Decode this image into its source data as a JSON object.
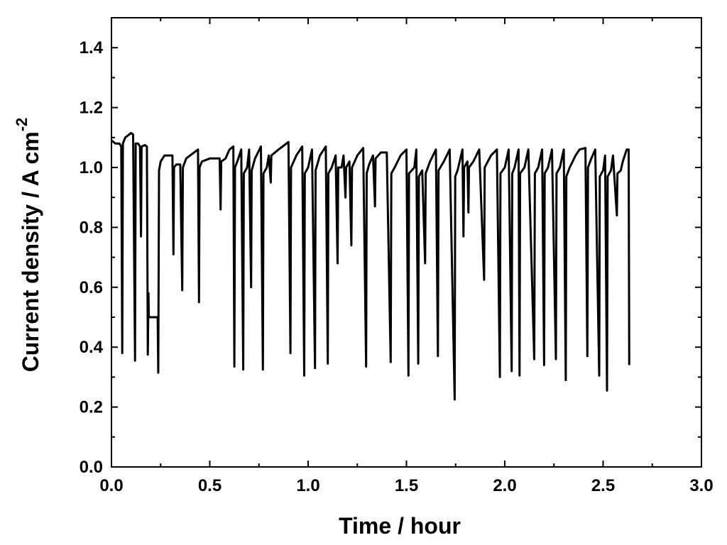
{
  "chart_data": {
    "type": "line",
    "title": "",
    "xlabel": "Time / hour",
    "ylabel_main": "Current density / A cm",
    "ylabel_superscript": "-2",
    "xlim": [
      0.0,
      3.0
    ],
    "ylim": [
      0.0,
      1.5
    ],
    "x_ticks": [
      "0.0",
      "0.5",
      "1.0",
      "1.5",
      "2.0",
      "2.5",
      "3.0"
    ],
    "y_ticks": [
      "0.0",
      "0.2",
      "0.4",
      "0.6",
      "0.8",
      "1.0",
      "1.2",
      "1.4"
    ],
    "grid": false,
    "legend": "none",
    "line_color": "#000000",
    "series": [
      {
        "points": [
          [
            0.0,
            1.09
          ],
          [
            0.02,
            1.08
          ],
          [
            0.04,
            1.08
          ],
          [
            0.05,
            1.07
          ],
          [
            0.055,
            0.38
          ],
          [
            0.058,
            1.08
          ],
          [
            0.07,
            1.1
          ],
          [
            0.09,
            1.11
          ],
          [
            0.1,
            1.115
          ],
          [
            0.11,
            1.11
          ],
          [
            0.12,
            0.355
          ],
          [
            0.123,
            1.08
          ],
          [
            0.135,
            1.08
          ],
          [
            0.145,
            1.07
          ],
          [
            0.15,
            0.77
          ],
          [
            0.153,
            1.07
          ],
          [
            0.17,
            1.075
          ],
          [
            0.18,
            1.07
          ],
          [
            0.185,
            0.375
          ],
          [
            0.188,
            0.58
          ],
          [
            0.19,
            0.5
          ],
          [
            0.235,
            0.5
          ],
          [
            0.238,
            0.315
          ],
          [
            0.242,
            0.99
          ],
          [
            0.25,
            1.02
          ],
          [
            0.26,
            1.03
          ],
          [
            0.27,
            1.04
          ],
          [
            0.3,
            1.04
          ],
          [
            0.31,
            1.04
          ],
          [
            0.315,
            0.71
          ],
          [
            0.318,
            1.0
          ],
          [
            0.33,
            1.01
          ],
          [
            0.35,
            1.01
          ],
          [
            0.36,
            0.59
          ],
          [
            0.363,
            1.0
          ],
          [
            0.38,
            1.03
          ],
          [
            0.4,
            1.04
          ],
          [
            0.42,
            1.05
          ],
          [
            0.44,
            1.06
          ],
          [
            0.445,
            0.55
          ],
          [
            0.448,
            1.0
          ],
          [
            0.46,
            1.02
          ],
          [
            0.5,
            1.03
          ],
          [
            0.54,
            1.03
          ],
          [
            0.55,
            1.03
          ],
          [
            0.555,
            0.86
          ],
          [
            0.558,
            1.02
          ],
          [
            0.58,
            1.03
          ],
          [
            0.6,
            1.06
          ],
          [
            0.62,
            1.07
          ],
          [
            0.625,
            0.335
          ],
          [
            0.628,
            1.0
          ],
          [
            0.64,
            1.02
          ],
          [
            0.66,
            1.06
          ],
          [
            0.67,
            0.325
          ],
          [
            0.673,
            0.98
          ],
          [
            0.69,
            1.0
          ],
          [
            0.7,
            1.06
          ],
          [
            0.71,
            0.6
          ],
          [
            0.713,
            0.99
          ],
          [
            0.73,
            1.03
          ],
          [
            0.76,
            1.07
          ],
          [
            0.77,
            0.325
          ],
          [
            0.773,
            0.98
          ],
          [
            0.79,
            1.0
          ],
          [
            0.8,
            1.04
          ],
          [
            0.81,
            0.95
          ],
          [
            0.813,
            1.04
          ],
          [
            0.85,
            1.06
          ],
          [
            0.87,
            1.07
          ],
          [
            0.9,
            1.085
          ],
          [
            0.91,
            0.38
          ],
          [
            0.913,
            1.0
          ],
          [
            0.94,
            1.04
          ],
          [
            0.97,
            1.07
          ],
          [
            0.98,
            0.305
          ],
          [
            0.983,
            0.98
          ],
          [
            1.0,
            1.0
          ],
          [
            1.02,
            1.06
          ],
          [
            1.035,
            0.33
          ],
          [
            1.038,
            0.99
          ],
          [
            1.06,
            1.04
          ],
          [
            1.09,
            1.07
          ],
          [
            1.1,
            0.345
          ],
          [
            1.103,
            0.98
          ],
          [
            1.12,
            1.0
          ],
          [
            1.14,
            1.04
          ],
          [
            1.15,
            0.68
          ],
          [
            1.153,
            1.0
          ],
          [
            1.17,
            1.0
          ],
          [
            1.18,
            1.04
          ],
          [
            1.19,
            0.9
          ],
          [
            1.193,
            1.0
          ],
          [
            1.21,
            1.02
          ],
          [
            1.22,
            0.74
          ],
          [
            1.223,
            1.0
          ],
          [
            1.25,
            1.04
          ],
          [
            1.28,
            1.065
          ],
          [
            1.295,
            0.335
          ],
          [
            1.298,
            0.98
          ],
          [
            1.31,
            1.01
          ],
          [
            1.33,
            1.04
          ],
          [
            1.34,
            0.87
          ],
          [
            1.343,
            1.03
          ],
          [
            1.37,
            1.05
          ],
          [
            1.4,
            1.05
          ],
          [
            1.42,
            0.35
          ],
          [
            1.423,
            0.98
          ],
          [
            1.44,
            1.0
          ],
          [
            1.47,
            1.04
          ],
          [
            1.5,
            1.06
          ],
          [
            1.51,
            0.305
          ],
          [
            1.513,
            0.98
          ],
          [
            1.54,
            1.0
          ],
          [
            1.55,
            1.06
          ],
          [
            1.56,
            0.345
          ],
          [
            1.563,
            0.97
          ],
          [
            1.58,
            0.99
          ],
          [
            1.595,
            0.68
          ],
          [
            1.598,
            0.98
          ],
          [
            1.62,
            1.02
          ],
          [
            1.65,
            1.06
          ],
          [
            1.66,
            0.37
          ],
          [
            1.663,
            0.99
          ],
          [
            1.69,
            1.02
          ],
          [
            1.72,
            1.06
          ],
          [
            1.745,
            0.225
          ],
          [
            1.748,
            0.97
          ],
          [
            1.76,
            0.99
          ],
          [
            1.785,
            1.06
          ],
          [
            1.79,
            0.77
          ],
          [
            1.793,
            1.0
          ],
          [
            1.81,
            1.02
          ],
          [
            1.815,
            0.85
          ],
          [
            1.818,
            1.0
          ],
          [
            1.84,
            1.02
          ],
          [
            1.87,
            1.06
          ],
          [
            1.895,
            0.625
          ],
          [
            1.898,
            1.0
          ],
          [
            1.93,
            1.04
          ],
          [
            1.96,
            1.06
          ],
          [
            1.975,
            0.3
          ],
          [
            1.978,
            0.98
          ],
          [
            2.0,
            1.0
          ],
          [
            2.02,
            1.06
          ],
          [
            2.035,
            0.32
          ],
          [
            2.038,
            0.98
          ],
          [
            2.05,
            1.0
          ],
          [
            2.07,
            1.06
          ],
          [
            2.075,
            0.305
          ],
          [
            2.078,
            0.98
          ],
          [
            2.1,
            1.0
          ],
          [
            2.12,
            1.06
          ],
          [
            2.15,
            0.36
          ],
          [
            2.153,
            0.98
          ],
          [
            2.17,
            1.0
          ],
          [
            2.19,
            1.06
          ],
          [
            2.2,
            0.34
          ],
          [
            2.203,
            0.98
          ],
          [
            2.22,
            1.0
          ],
          [
            2.24,
            1.06
          ],
          [
            2.26,
            0.36
          ],
          [
            2.263,
            0.98
          ],
          [
            2.28,
            1.0
          ],
          [
            2.3,
            1.06
          ],
          [
            2.31,
            0.29
          ],
          [
            2.313,
            0.97
          ],
          [
            2.33,
            1.0
          ],
          [
            2.36,
            1.04
          ],
          [
            2.38,
            1.06
          ],
          [
            2.41,
            1.065
          ],
          [
            2.42,
            0.37
          ],
          [
            2.423,
            1.0
          ],
          [
            2.44,
            1.03
          ],
          [
            2.46,
            1.06
          ],
          [
            2.48,
            0.305
          ],
          [
            2.483,
            0.97
          ],
          [
            2.5,
            0.99
          ],
          [
            2.51,
            1.04
          ],
          [
            2.52,
            0.255
          ],
          [
            2.523,
            0.97
          ],
          [
            2.54,
            0.99
          ],
          [
            2.55,
            1.04
          ],
          [
            2.57,
            0.84
          ],
          [
            2.573,
            0.98
          ],
          [
            2.59,
            0.99
          ],
          [
            2.6,
            1.02
          ],
          [
            2.62,
            1.06
          ],
          [
            2.63,
            1.06
          ],
          [
            2.633,
            0.34
          ]
        ]
      }
    ]
  }
}
